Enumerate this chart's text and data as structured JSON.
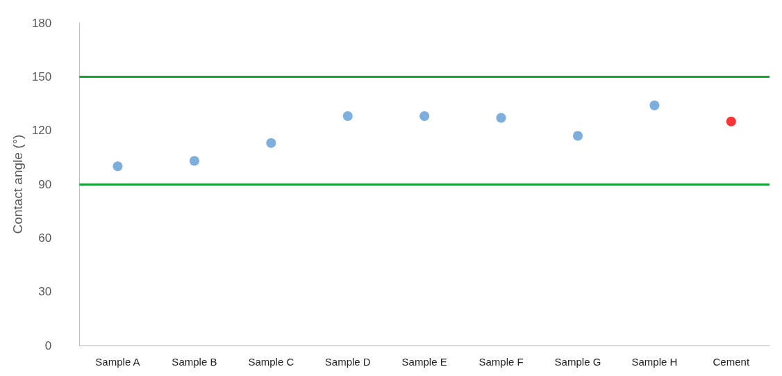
{
  "chart_data": {
    "type": "scatter",
    "ylabel": "Contact angle (°)",
    "categories": [
      "Sample A",
      "Sample B",
      "Sample C",
      "Sample D",
      "Sample E",
      "Sample F",
      "Sample G",
      "Sample H",
      "Cement"
    ],
    "values": [
      100,
      103,
      113,
      128,
      128,
      127,
      117,
      134,
      125
    ],
    "colors": [
      "#5b9bd5",
      "#5b9bd5",
      "#5b9bd5",
      "#5b9bd5",
      "#5b9bd5",
      "#5b9bd5",
      "#5b9bd5",
      "#5b9bd5",
      "#ff0000"
    ],
    "ylim": [
      0,
      180
    ],
    "yticks": [
      0,
      30,
      60,
      90,
      120,
      150,
      180
    ],
    "ref_lines": [
      {
        "axis": "y",
        "value": 150,
        "color": "#16a335"
      },
      {
        "axis": "y",
        "value": 90,
        "color": "#16a335"
      }
    ],
    "marker": "circle",
    "grid": false
  }
}
